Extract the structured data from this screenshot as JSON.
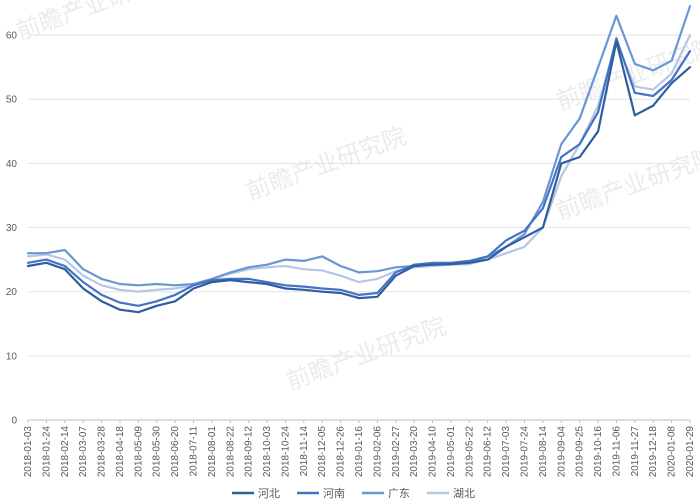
{
  "chart_data": {
    "type": "line",
    "title": "",
    "xlabel": "",
    "ylabel": "",
    "ylim": [
      0,
      65
    ],
    "yticks": [
      0,
      10,
      20,
      30,
      40,
      50,
      60
    ],
    "grid": "horizontal",
    "legend_position": "bottom",
    "x_tick_labels": [
      "2018-01-03",
      "2018-01-24",
      "2018-02-14",
      "2018-03-07",
      "2018-03-28",
      "2018-04-18",
      "2018-05-09",
      "2018-05-30",
      "2018-06-20",
      "2018-07-11",
      "2018-08-01",
      "2018-08-22",
      "2018-09-12",
      "2018-10-03",
      "2018-10-24",
      "2018-11-14",
      "2018-12-05",
      "2018-12-26",
      "2019-01-16",
      "2019-02-06",
      "2019-02-27",
      "2019-03-20",
      "2019-04-10",
      "2019-05-01",
      "2019-05-22",
      "2019-06-12",
      "2019-07-03",
      "2019-07-24",
      "2019-08-14",
      "2019-09-04",
      "2019-09-25",
      "2019-10-16",
      "2019-11-06",
      "2019-11-27",
      "2019-12-18",
      "2020-01-08",
      "2020-01-29"
    ],
    "series": [
      {
        "name": "河北",
        "color": "#2e5e9e",
        "values": [
          24.0,
          24.5,
          23.5,
          20.5,
          18.5,
          17.2,
          16.8,
          17.8,
          18.5,
          20.5,
          21.5,
          21.8,
          21.5,
          21.2,
          20.5,
          20.3,
          20.0,
          19.8,
          19.0,
          19.2,
          22.5,
          24.0,
          24.2,
          24.3,
          24.5,
          25.0,
          27.0,
          28.5,
          30.0,
          40.0,
          41.0,
          45.0,
          59.0,
          47.5,
          49.0,
          52.5,
          55.0
        ]
      },
      {
        "name": "河南",
        "color": "#4472c4",
        "values": [
          24.5,
          25.0,
          24.0,
          21.5,
          19.5,
          18.3,
          17.8,
          18.5,
          19.5,
          21.0,
          21.8,
          22.0,
          22.0,
          21.5,
          21.0,
          20.8,
          20.5,
          20.3,
          19.5,
          19.8,
          23.0,
          24.2,
          24.5,
          24.5,
          24.8,
          25.5,
          28.0,
          29.5,
          33.0,
          41.0,
          43.0,
          48.0,
          59.5,
          51.0,
          50.5,
          53.0,
          57.5
        ]
      },
      {
        "name": "广东",
        "color": "#6a96d4",
        "values": [
          26.0,
          26.0,
          26.5,
          23.5,
          22.0,
          21.2,
          21.0,
          21.2,
          21.0,
          21.2,
          22.0,
          23.0,
          23.8,
          24.2,
          25.0,
          24.8,
          25.5,
          24.0,
          23.0,
          23.2,
          23.8,
          24.0,
          24.2,
          24.3,
          24.5,
          25.5,
          27.0,
          29.0,
          34.0,
          43.0,
          47.0,
          55.0,
          63.0,
          55.5,
          54.5,
          56.0,
          64.5
        ]
      },
      {
        "name": "湖北",
        "color": "#b4c7e7",
        "values": [
          25.5,
          25.8,
          25.0,
          22.5,
          21.0,
          20.3,
          20.0,
          20.3,
          20.5,
          21.0,
          22.0,
          22.8,
          23.5,
          23.8,
          24.0,
          23.5,
          23.3,
          22.5,
          21.5,
          22.0,
          23.2,
          23.8,
          24.0,
          24.2,
          24.3,
          25.0,
          26.0,
          27.0,
          30.0,
          38.0,
          43.0,
          49.0,
          59.0,
          52.0,
          51.5,
          54.0,
          60.0
        ]
      }
    ]
  },
  "watermark": {
    "brand": "前瞻产业研究院"
  }
}
